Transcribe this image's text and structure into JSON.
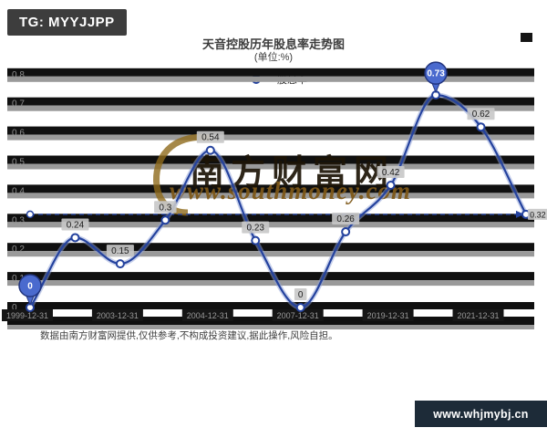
{
  "header": {
    "tg_label": "TG: MYYJJPP"
  },
  "chart_data": {
    "type": "line",
    "title": "天音控股历年股息率走势图",
    "subtitle": "(单位:%)",
    "legend": {
      "label": "股息率"
    },
    "ylim": [
      0,
      0.8
    ],
    "yticks": [
      0.8,
      0.7,
      0.6,
      0.5,
      0.4,
      0.3,
      0.2,
      0.1,
      0
    ],
    "x_labels": [
      "1999-12-31",
      "2003-12-31",
      "2004-12-31",
      "2007-12-31",
      "2019-12-31",
      "2021-12-31"
    ],
    "x_label_every": 2,
    "points": [
      {
        "value": 0,
        "label": "0",
        "balloon": true
      },
      {
        "value": 0.24,
        "label": "0.24"
      },
      {
        "value": 0.15,
        "label": "0.15"
      },
      {
        "value": 0.3,
        "label": "0.3"
      },
      {
        "value": 0.54,
        "label": "0.54"
      },
      {
        "value": 0.23,
        "label": "0.23"
      },
      {
        "value": 0,
        "label": "0"
      },
      {
        "value": 0.26,
        "label": "0.26"
      },
      {
        "value": 0.42,
        "label": "0.42"
      },
      {
        "value": 0.73,
        "label": "0.73",
        "balloon": true
      },
      {
        "value": 0.62,
        "label": "0.62"
      },
      {
        "value": 0.32,
        "label": "0.32"
      }
    ],
    "reference_line": {
      "value": 0.32,
      "style": "dashed-arrow"
    },
    "grid": "horizontal-bands",
    "legend_position": "top-center"
  },
  "watermark": {
    "brand": "南方财富网",
    "url": "www.southmoney.com"
  },
  "footnote": "数据由南方财富网提供,仅供参考,不构成投资建议,据此操作,风险自担。",
  "footer": {
    "site": "www.whjmybj.cn"
  },
  "colors": {
    "line": "#24429e",
    "line_halo": "#8fa2d8",
    "balloon": "#4a6ace",
    "balloon_edge": "#22357e",
    "band_dark": "#101010",
    "band_gray": "#9a9a9a",
    "chip_bg": "#c8c8c8",
    "chip_text": "#202020",
    "tick_text": "#9a9a9a",
    "badge_bg": "#3d3d3d",
    "footer_bg": "#1d2b38",
    "watermark_gold": "#8f6a1c"
  }
}
